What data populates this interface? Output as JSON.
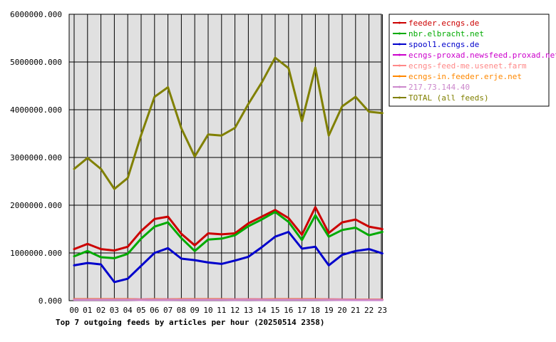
{
  "chart_data": {
    "type": "line",
    "title": "Top 7 outgoing feeds by articles per hour (20250514 2358)",
    "xlabel": "",
    "ylabel": "",
    "x": [
      "00",
      "01",
      "02",
      "03",
      "04",
      "05",
      "06",
      "07",
      "08",
      "09",
      "10",
      "11",
      "12",
      "13",
      "14",
      "15",
      "16",
      "17",
      "18",
      "19",
      "20",
      "21",
      "22",
      "23"
    ],
    "ylim": [
      0,
      6000000
    ],
    "yticks": [
      0,
      1000000,
      2000000,
      3000000,
      4000000,
      5000000,
      6000000
    ],
    "ytick_labels": [
      "0.000",
      "1000000.000",
      "2000000.000",
      "3000000.000",
      "4000000.000",
      "5000000.000",
      "6000000.000"
    ],
    "grid": true,
    "legend_position": "right",
    "plot_background": "#e0e0e0",
    "series": [
      {
        "name": "feeder.ecngs.de",
        "color": "#cc0000",
        "values": [
          1080000,
          1190000,
          1080000,
          1050000,
          1130000,
          1460000,
          1710000,
          1760000,
          1400000,
          1160000,
          1410000,
          1390000,
          1410000,
          1620000,
          1760000,
          1900000,
          1730000,
          1380000,
          1960000,
          1420000,
          1640000,
          1700000,
          1550000,
          1500000
        ]
      },
      {
        "name": "nbr.elbracht.net",
        "color": "#00aa00",
        "values": [
          930000,
          1040000,
          910000,
          890000,
          980000,
          1300000,
          1550000,
          1640000,
          1310000,
          1040000,
          1280000,
          1300000,
          1370000,
          1560000,
          1700000,
          1860000,
          1650000,
          1270000,
          1790000,
          1340000,
          1480000,
          1530000,
          1370000,
          1440000
        ]
      },
      {
        "name": "spool1.ecngs.de",
        "color": "#0000cc",
        "values": [
          740000,
          790000,
          760000,
          390000,
          460000,
          730000,
          1000000,
          1100000,
          880000,
          850000,
          800000,
          770000,
          840000,
          920000,
          1120000,
          1340000,
          1440000,
          1090000,
          1130000,
          740000,
          960000,
          1040000,
          1080000,
          990000
        ]
      },
      {
        "name": "ecngs-proxad.newsfeed.proxad.net",
        "color": "#cc00cc",
        "values": [
          32000,
          32000,
          32000,
          32000,
          32000,
          24000,
          32000,
          26000,
          32000,
          32000,
          32000,
          32000,
          26000,
          28000,
          26000,
          32000,
          32000,
          32000,
          32000,
          26000,
          24000,
          22000,
          22000,
          22000
        ]
      },
      {
        "name": "ecngs-feed-me.usenet.farm",
        "color": "#ff8888",
        "values": [
          30000,
          30000,
          30000,
          30000,
          30000,
          22000,
          30000,
          24000,
          30000,
          30000,
          30000,
          30000,
          24000,
          26000,
          24000,
          30000,
          30000,
          30000,
          30000,
          24000,
          22000,
          20000,
          20000,
          20000
        ]
      },
      {
        "name": "ecngs-in.feeder.erje.net",
        "color": "#ff8800",
        "values": [
          28000,
          28000,
          28000,
          28000,
          28000,
          20000,
          28000,
          22000,
          28000,
          28000,
          28000,
          28000,
          22000,
          24000,
          22000,
          28000,
          28000,
          28000,
          28000,
          22000,
          20000,
          18000,
          18000,
          18000
        ]
      },
      {
        "name": "217.73.144.40",
        "color": "#cc88cc",
        "values": [
          20000,
          20000,
          20000,
          20000,
          20000,
          15000,
          20000,
          16000,
          20000,
          20000,
          20000,
          20000,
          16000,
          18000,
          16000,
          20000,
          20000,
          20000,
          20000,
          16000,
          15000,
          14000,
          14000,
          14000
        ]
      },
      {
        "name": "TOTAL (all feeds)",
        "color": "#808000",
        "values": [
          2760000,
          2990000,
          2760000,
          2340000,
          2570000,
          3470000,
          4270000,
          4470000,
          3610000,
          3020000,
          3480000,
          3460000,
          3620000,
          4120000,
          4570000,
          5090000,
          4870000,
          3760000,
          4880000,
          3460000,
          4070000,
          4270000,
          3960000,
          3930000
        ]
      }
    ]
  }
}
